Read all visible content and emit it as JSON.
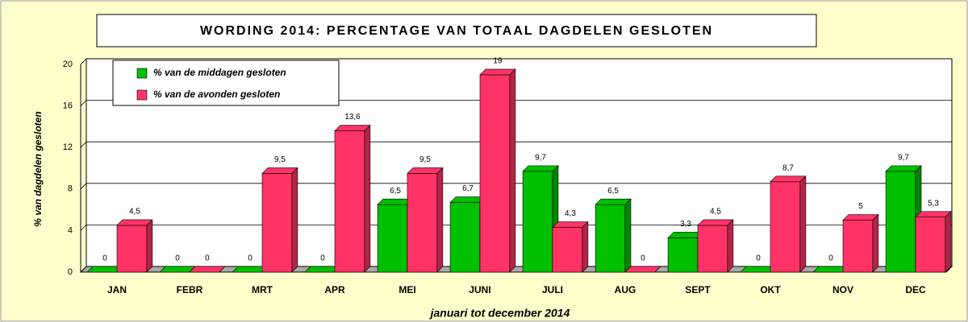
{
  "chart_data": {
    "type": "bar",
    "title": "WORDING 2014: PERCENTAGE VAN TOTAAL DAGDELEN GESLOTEN",
    "y_label": "% van dagdelen gesloten",
    "x_label": "januari tot december 2014",
    "categories": [
      "JAN",
      "FEBR",
      "MRT",
      "APR",
      "MEI",
      "JUNI",
      "JULI",
      "AUG",
      "SEPT",
      "OKT",
      "NOV",
      "DEC"
    ],
    "series": [
      {
        "name": "% van de middagen gesloten",
        "color": "#00c000",
        "values": [
          0,
          0,
          0,
          0,
          6.5,
          6.7,
          9.7,
          6.5,
          3.3,
          0,
          0,
          9.7
        ],
        "value_labels": [
          "0",
          "0",
          "0",
          "0",
          "6,5",
          "6,7",
          "9,7",
          "6,5",
          "3,3",
          "0",
          "0",
          "9,7"
        ]
      },
      {
        "name": "% van de avonden gesloten",
        "color": "#ff3366",
        "values": [
          4.5,
          0,
          9.5,
          13.6,
          9.5,
          19,
          4.3,
          0,
          4.5,
          8.7,
          5,
          5.3
        ],
        "value_labels": [
          "4,5",
          "0",
          "9,5",
          "13,6",
          "9,5",
          "19",
          "4,3",
          "0",
          "4,5",
          "8,7",
          "5",
          "5,3"
        ]
      }
    ],
    "ylim": [
      0,
      20
    ],
    "yticks": [
      0,
      4,
      8,
      12,
      16,
      20
    ],
    "grid": true
  }
}
